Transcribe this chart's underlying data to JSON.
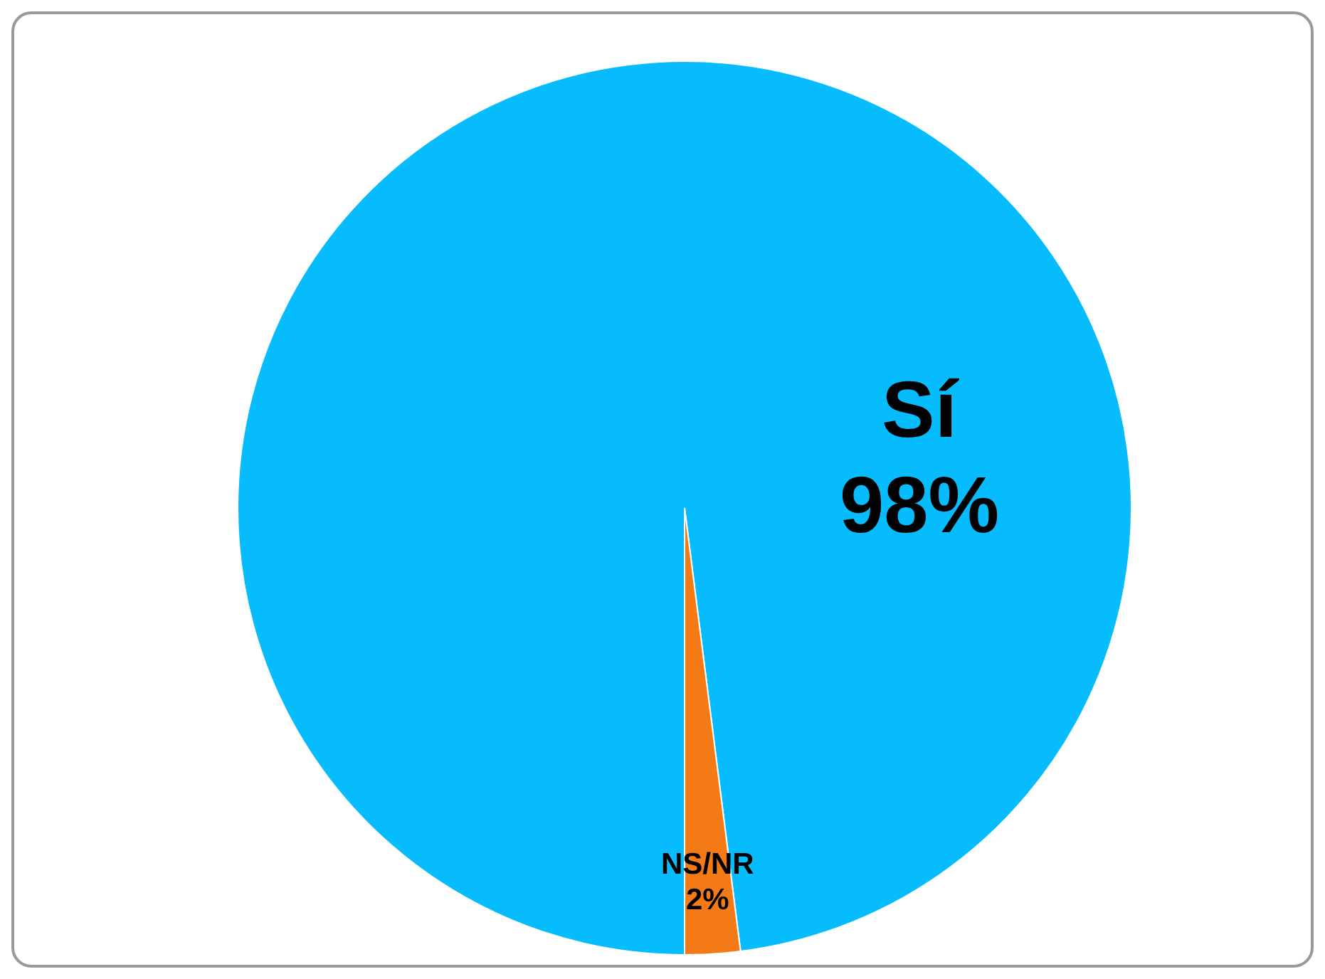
{
  "chart_data": {
    "type": "pie",
    "categories": [
      "Sí",
      "NS/NR"
    ],
    "values": [
      98,
      2
    ],
    "colors": [
      "#06bcfc",
      "#f47a16"
    ],
    "value_labels": [
      "98%",
      "2%"
    ],
    "legend": false
  }
}
